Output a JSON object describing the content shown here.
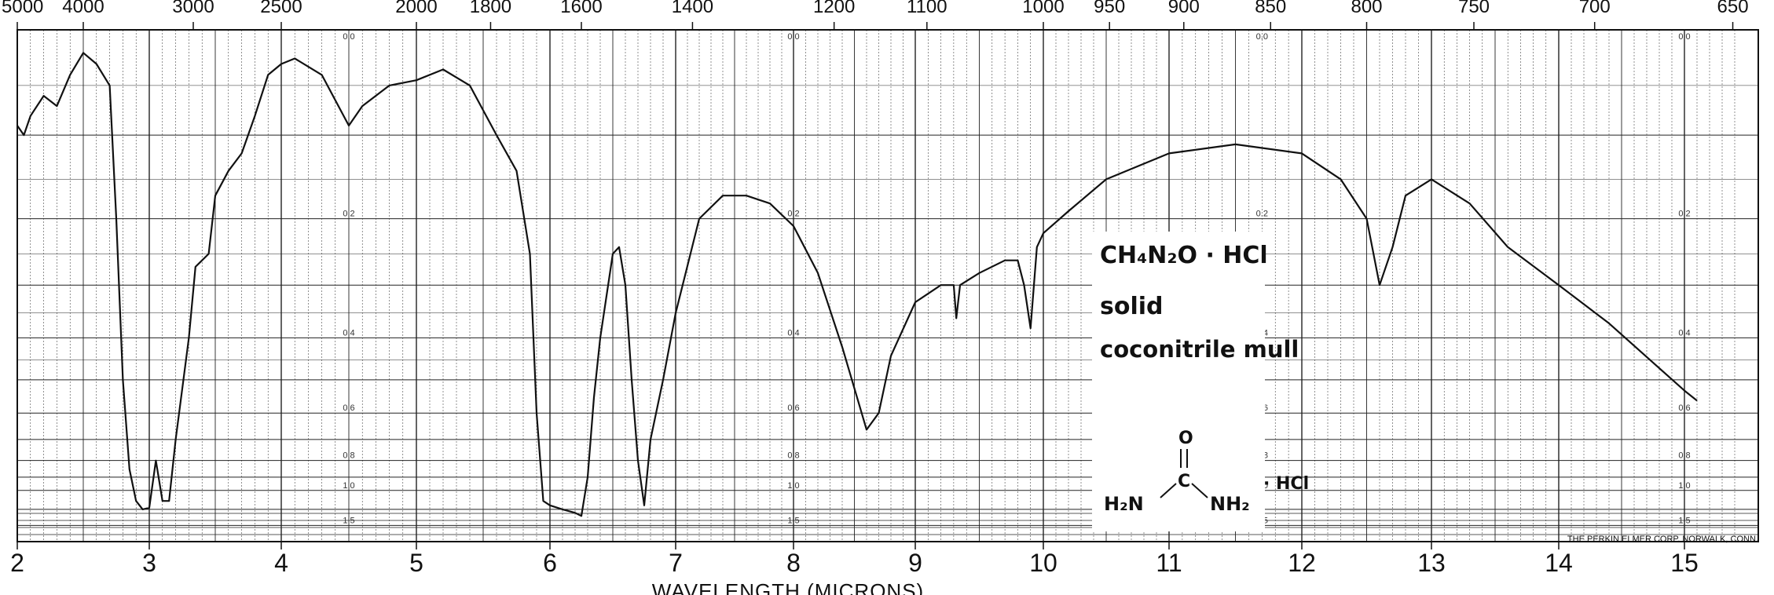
{
  "chart_data": {
    "type": "line",
    "xlabel": "WAVELENGTH (MICRONS)",
    "xlim": [
      2.0,
      15.4
    ],
    "x_ticks": [
      2,
      3,
      4,
      5,
      6,
      7,
      8,
      9,
      10,
      11,
      12,
      13,
      14,
      15
    ],
    "top_axis_ticks": [
      {
        "label": "5000",
        "wavenumber": 5000
      },
      {
        "label": "4000",
        "wavenumber": 4000
      },
      {
        "label": "3000",
        "wavenumber": 3000
      },
      {
        "label": "2500",
        "wavenumber": 2500
      },
      {
        "label": "2000",
        "wavenumber": 2000
      },
      {
        "label": "1800",
        "wavenumber": 1800
      },
      {
        "label": "1600",
        "wavenumber": 1600
      },
      {
        "label": "1400",
        "wavenumber": 1400
      },
      {
        "label": "1200",
        "wavenumber": 1200
      },
      {
        "label": "1100",
        "wavenumber": 1100
      },
      {
        "label": "1000",
        "wavenumber": 1000
      },
      {
        "label": "950",
        "wavenumber": 950
      },
      {
        "label": "900",
        "wavenumber": 900
      },
      {
        "label": "850",
        "wavenumber": 850
      },
      {
        "label": "800",
        "wavenumber": 800
      },
      {
        "label": "750",
        "wavenumber": 750
      },
      {
        "label": "700",
        "wavenumber": 700
      },
      {
        "label": "650",
        "wavenumber": 650
      }
    ],
    "absorbance_labels": [
      "0.0",
      "0.2",
      "0.4",
      "0.6",
      "0.8",
      "1.0",
      "1.5"
    ],
    "absorbance_label_x": [
      4.5,
      8.0,
      11.7,
      15.0
    ],
    "absorbance_ticks": [
      0.0,
      0.05,
      0.1,
      0.15,
      0.2,
      0.25,
      0.3,
      0.35,
      0.4,
      0.45,
      0.5,
      0.6,
      0.7,
      0.8,
      0.9,
      1.0,
      1.2,
      1.5
    ],
    "grid": true,
    "series": [
      {
        "points": [
          [
            2.0,
            0.09
          ],
          [
            2.05,
            0.1
          ],
          [
            2.1,
            0.08
          ],
          [
            2.2,
            0.06
          ],
          [
            2.3,
            0.07
          ],
          [
            2.4,
            0.04
          ],
          [
            2.5,
            0.02
          ],
          [
            2.6,
            0.03
          ],
          [
            2.7,
            0.05
          ],
          [
            2.75,
            0.2
          ],
          [
            2.8,
            0.5
          ],
          [
            2.85,
            0.85
          ],
          [
            2.9,
            1.1
          ],
          [
            2.95,
            1.2
          ],
          [
            3.0,
            1.18
          ],
          [
            3.05,
            0.8
          ],
          [
            3.1,
            1.1
          ],
          [
            3.15,
            1.1
          ],
          [
            3.2,
            0.7
          ],
          [
            3.3,
            0.4
          ],
          [
            3.35,
            0.27
          ],
          [
            3.45,
            0.25
          ],
          [
            3.5,
            0.17
          ],
          [
            3.6,
            0.14
          ],
          [
            3.7,
            0.12
          ],
          [
            3.8,
            0.08
          ],
          [
            3.9,
            0.04
          ],
          [
            4.0,
            0.03
          ],
          [
            4.1,
            0.025
          ],
          [
            4.3,
            0.04
          ],
          [
            4.5,
            0.09
          ],
          [
            4.6,
            0.07
          ],
          [
            4.8,
            0.05
          ],
          [
            5.0,
            0.045
          ],
          [
            5.2,
            0.035
          ],
          [
            5.4,
            0.05
          ],
          [
            5.6,
            0.1
          ],
          [
            5.75,
            0.14
          ],
          [
            5.85,
            0.25
          ],
          [
            5.9,
            0.6
          ],
          [
            5.95,
            1.1
          ],
          [
            6.0,
            1.15
          ],
          [
            6.1,
            1.2
          ],
          [
            6.2,
            1.25
          ],
          [
            6.25,
            1.3
          ],
          [
            6.3,
            0.9
          ],
          [
            6.35,
            0.55
          ],
          [
            6.4,
            0.4
          ],
          [
            6.5,
            0.25
          ],
          [
            6.55,
            0.24
          ],
          [
            6.6,
            0.3
          ],
          [
            6.65,
            0.5
          ],
          [
            6.7,
            0.8
          ],
          [
            6.75,
            1.15
          ],
          [
            6.8,
            0.7
          ],
          [
            6.9,
            0.5
          ],
          [
            7.0,
            0.35
          ],
          [
            7.2,
            0.2
          ],
          [
            7.4,
            0.17
          ],
          [
            7.6,
            0.17
          ],
          [
            7.8,
            0.18
          ],
          [
            8.0,
            0.21
          ],
          [
            8.2,
            0.28
          ],
          [
            8.4,
            0.42
          ],
          [
            8.6,
            0.66
          ],
          [
            8.7,
            0.6
          ],
          [
            8.8,
            0.44
          ],
          [
            9.0,
            0.33
          ],
          [
            9.2,
            0.3
          ],
          [
            9.3,
            0.3
          ],
          [
            9.32,
            0.36
          ],
          [
            9.35,
            0.3
          ],
          [
            9.5,
            0.28
          ],
          [
            9.7,
            0.26
          ],
          [
            9.8,
            0.26
          ],
          [
            9.85,
            0.3
          ],
          [
            9.9,
            0.38
          ],
          [
            9.95,
            0.24
          ],
          [
            10.0,
            0.22
          ],
          [
            10.2,
            0.19
          ],
          [
            10.5,
            0.15
          ],
          [
            11.0,
            0.12
          ],
          [
            11.5,
            0.11
          ],
          [
            12.0,
            0.12
          ],
          [
            12.3,
            0.15
          ],
          [
            12.5,
            0.2
          ],
          [
            12.6,
            0.3
          ],
          [
            12.7,
            0.24
          ],
          [
            12.8,
            0.17
          ],
          [
            13.0,
            0.15
          ],
          [
            13.3,
            0.18
          ],
          [
            13.6,
            0.24
          ],
          [
            14.0,
            0.3
          ],
          [
            14.4,
            0.37
          ],
          [
            14.8,
            0.47
          ],
          [
            15.0,
            0.53
          ],
          [
            15.1,
            0.56
          ]
        ]
      }
    ]
  },
  "annotation": {
    "formula": "CH₄N₂O · HCl",
    "state": "solid",
    "medium": "coconitrile mull",
    "structure": {
      "atom_o": "O",
      "atom_c": "C",
      "left_group": "H₂N",
      "right_group": "NH₂",
      "salt": "· HCl"
    }
  },
  "manufacturer": "THE PERKIN ELMER CORP. NORWALK, CONN."
}
